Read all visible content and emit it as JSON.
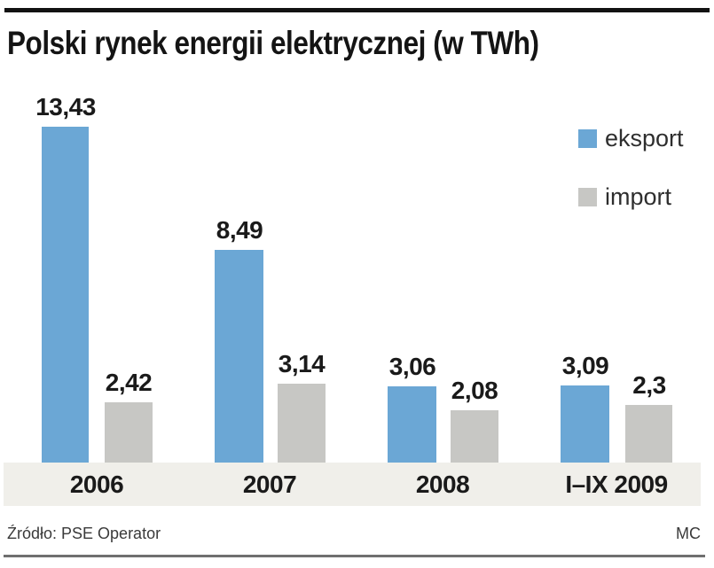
{
  "title": "Polski rynek energii elektrycznej (w TWh)",
  "footer": {
    "source": "Źródło: PSE Operator",
    "credit": "MC"
  },
  "colors": {
    "eksport": "#6BA7D5",
    "import": "#C7C7C4",
    "band": "#F0EFEA",
    "text": "#1A1A1A"
  },
  "chart_data": {
    "type": "bar",
    "title": "Polski rynek energii elektrycznej (w TWh)",
    "categories": [
      "2006",
      "2007",
      "2008",
      "I–IX 2009"
    ],
    "series": [
      {
        "name": "eksport",
        "color": "#6BA7D5",
        "values": [
          13.43,
          8.49,
          3.06,
          3.09
        ],
        "labels": [
          "13,43",
          "8,49",
          "3,06",
          "3,09"
        ]
      },
      {
        "name": "import",
        "color": "#C7C7C4",
        "values": [
          2.42,
          3.14,
          2.08,
          2.3
        ],
        "labels": [
          "2,42",
          "3,14",
          "2,08",
          "2,3"
        ]
      }
    ],
    "ylabel": "TWh",
    "ylim": [
      0,
      14
    ],
    "grid": false,
    "legend_position": "top-right",
    "value_labels_shown": true
  }
}
